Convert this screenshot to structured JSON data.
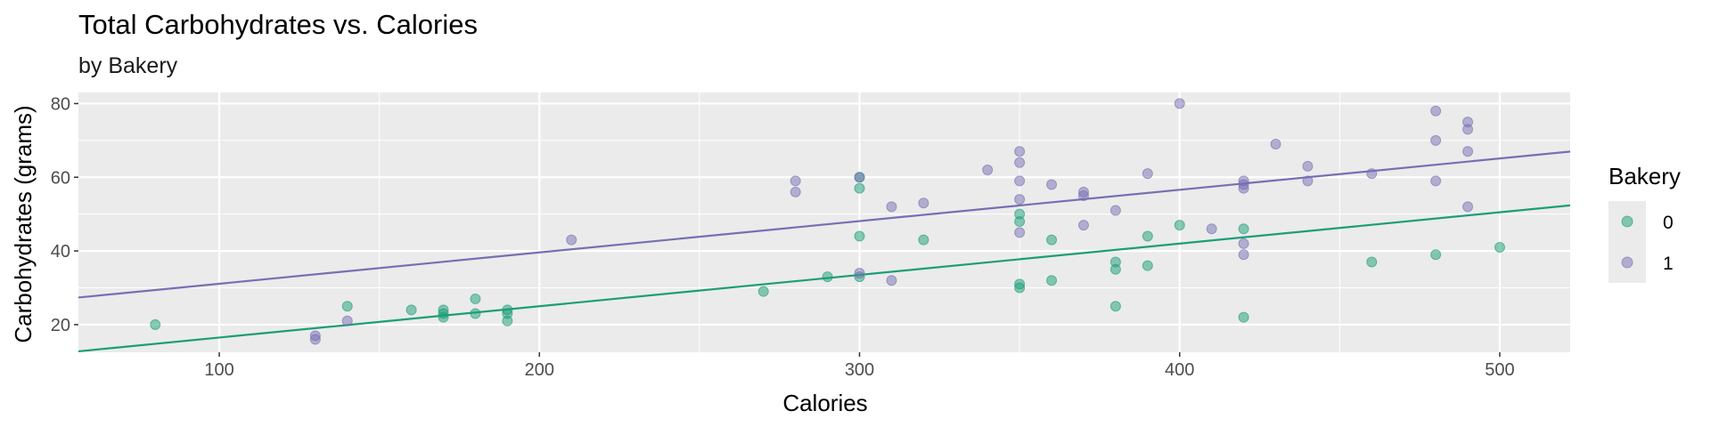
{
  "chart_data": {
    "type": "scatter",
    "title": "Total Carbohydrates vs. Calories",
    "subtitle": "by Bakery",
    "xlabel": "Calories",
    "ylabel": "Carbohydrates (grams)",
    "xlim": [
      56,
      522
    ],
    "ylim": [
      12.5,
      83
    ],
    "x_ticks": [
      100,
      200,
      300,
      400,
      500
    ],
    "y_ticks": [
      20,
      40,
      60,
      80
    ],
    "grid": true,
    "legend": {
      "title": "Bakery",
      "placement": "right"
    },
    "series": [
      {
        "name": "0",
        "color": "#1B9E77",
        "points": [
          [
            80,
            20
          ],
          [
            140,
            25
          ],
          [
            160,
            24
          ],
          [
            170,
            22
          ],
          [
            170,
            23
          ],
          [
            170,
            24
          ],
          [
            180,
            23
          ],
          [
            180,
            27
          ],
          [
            190,
            21
          ],
          [
            190,
            23
          ],
          [
            190,
            24
          ],
          [
            270,
            29
          ],
          [
            290,
            33
          ],
          [
            300,
            33
          ],
          [
            300,
            44
          ],
          [
            300,
            57
          ],
          [
            300,
            60
          ],
          [
            320,
            43
          ],
          [
            350,
            30
          ],
          [
            350,
            31
          ],
          [
            350,
            48
          ],
          [
            350,
            50
          ],
          [
            360,
            32
          ],
          [
            360,
            43
          ],
          [
            380,
            25
          ],
          [
            380,
            35
          ],
          [
            380,
            37
          ],
          [
            390,
            36
          ],
          [
            390,
            44
          ],
          [
            400,
            47
          ],
          [
            420,
            22
          ],
          [
            420,
            46
          ],
          [
            460,
            37
          ],
          [
            480,
            39
          ],
          [
            500,
            41
          ]
        ],
        "trend": {
          "intercept": 8.0,
          "slope": 0.085
        }
      },
      {
        "name": "1",
        "color": "#7570B3",
        "points": [
          [
            130,
            16
          ],
          [
            130,
            17
          ],
          [
            140,
            21
          ],
          [
            210,
            43
          ],
          [
            280,
            56
          ],
          [
            280,
            59
          ],
          [
            300,
            34
          ],
          [
            300,
            60
          ],
          [
            310,
            32
          ],
          [
            310,
            52
          ],
          [
            320,
            53
          ],
          [
            340,
            62
          ],
          [
            350,
            45
          ],
          [
            350,
            54
          ],
          [
            350,
            59
          ],
          [
            350,
            64
          ],
          [
            350,
            67
          ],
          [
            360,
            58
          ],
          [
            370,
            47
          ],
          [
            370,
            55
          ],
          [
            370,
            56
          ],
          [
            380,
            51
          ],
          [
            390,
            61
          ],
          [
            400,
            80
          ],
          [
            410,
            46
          ],
          [
            420,
            39
          ],
          [
            420,
            42
          ],
          [
            420,
            57
          ],
          [
            420,
            58
          ],
          [
            420,
            59
          ],
          [
            430,
            69
          ],
          [
            440,
            59
          ],
          [
            440,
            63
          ],
          [
            460,
            61
          ],
          [
            480,
            59
          ],
          [
            480,
            70
          ],
          [
            480,
            78
          ],
          [
            490,
            52
          ],
          [
            490,
            67
          ],
          [
            490,
            73
          ],
          [
            490,
            75
          ]
        ],
        "trend": {
          "intercept": 22.6,
          "slope": 0.085
        }
      }
    ]
  }
}
